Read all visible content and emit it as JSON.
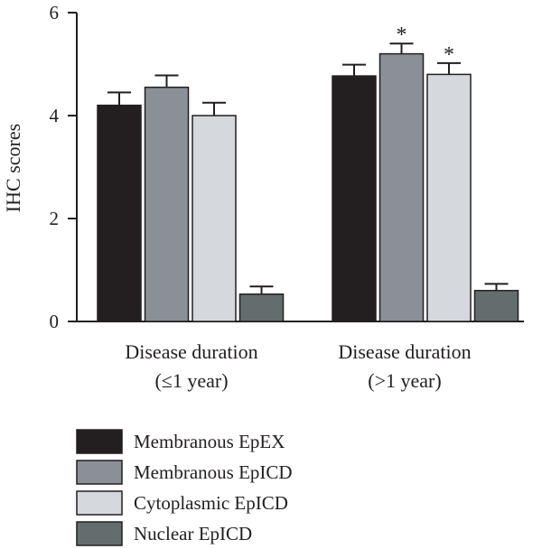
{
  "chart_data": {
    "type": "bar",
    "ylabel": "IHC scores",
    "ylim": [
      0,
      6
    ],
    "yticks": [
      "0",
      "2",
      "4",
      "6"
    ],
    "categories": [
      [
        "Disease duration",
        "(≤1 year)"
      ],
      [
        "Disease duration",
        "(>1 year)"
      ]
    ],
    "series": [
      {
        "name": "Membranous EpEX",
        "color": "#231f20",
        "values": [
          4.2,
          4.77
        ],
        "errors": [
          0.25,
          0.22
        ],
        "significance": [
          "",
          ""
        ]
      },
      {
        "name": "Membranous EpICD",
        "color": "#8a9096",
        "values": [
          4.55,
          5.2
        ],
        "errors": [
          0.23,
          0.2
        ],
        "significance": [
          "",
          "*"
        ]
      },
      {
        "name": "Cytoplasmic EpICD",
        "color": "#d5d9de",
        "values": [
          4.0,
          4.8
        ],
        "errors": [
          0.25,
          0.22
        ],
        "significance": [
          "",
          "*"
        ]
      },
      {
        "name": "Nuclear EpICD",
        "color": "#646d6d",
        "values": [
          0.53,
          0.6
        ],
        "errors": [
          0.15,
          0.13
        ],
        "significance": [
          "",
          ""
        ]
      }
    ],
    "legend_position": "bottom-left",
    "grid": false
  }
}
